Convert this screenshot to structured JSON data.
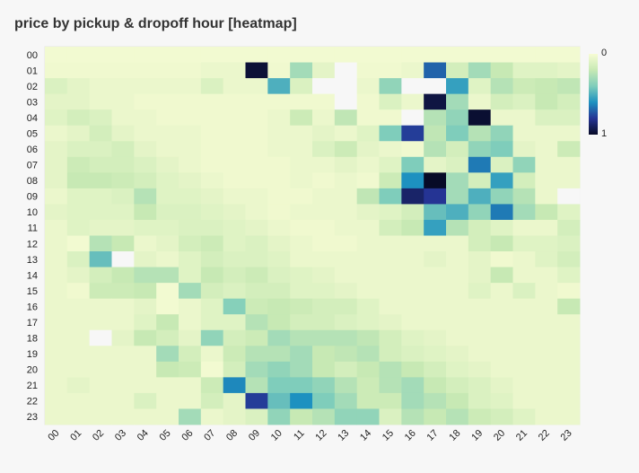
{
  "chart_data": {
    "type": "heatmap",
    "title": "price by pickup & dropoff hour [heatmap]",
    "x_categories": [
      "00",
      "01",
      "02",
      "03",
      "04",
      "05",
      "06",
      "07",
      "08",
      "09",
      "10",
      "11",
      "12",
      "13",
      "14",
      "15",
      "16",
      "17",
      "18",
      "19",
      "20",
      "21",
      "22",
      "23"
    ],
    "y_categories": [
      "00",
      "01",
      "02",
      "03",
      "04",
      "05",
      "06",
      "07",
      "08",
      "09",
      "10",
      "11",
      "12",
      "13",
      "14",
      "15",
      "16",
      "17",
      "18",
      "19",
      "20",
      "21",
      "22",
      "23"
    ],
    "color_range": [
      0,
      1
    ],
    "legend": {
      "min_label": "0",
      "max_label": "1",
      "placement": "right"
    },
    "values": [
      [
        0.02,
        0.02,
        0.02,
        0.02,
        0.02,
        0.02,
        0.02,
        0.02,
        0.02,
        0.02,
        0.02,
        0.02,
        0.02,
        0.02,
        0.02,
        0.02,
        0.02,
        0.02,
        0.02,
        0.02,
        0.02,
        0.02,
        0.02,
        0.02
      ],
      [
        0.03,
        0.03,
        0.03,
        0.03,
        0.03,
        0.03,
        0.03,
        0.05,
        0.05,
        0.97,
        0.03,
        0.3,
        0.08,
        null,
        0.03,
        0.03,
        0.05,
        0.7,
        0.15,
        0.3,
        0.2,
        0.1,
        0.1,
        0.08
      ],
      [
        0.12,
        0.08,
        0.05,
        0.05,
        0.05,
        0.05,
        0.05,
        0.12,
        0.05,
        0.05,
        0.5,
        0.12,
        null,
        null,
        0.05,
        0.35,
        null,
        null,
        0.55,
        0.1,
        0.25,
        0.18,
        0.2,
        0.22
      ],
      [
        0.08,
        0.08,
        0.05,
        0.05,
        0.03,
        0.03,
        0.03,
        0.03,
        0.03,
        0.03,
        0.03,
        0.03,
        0.03,
        null,
        0.03,
        0.12,
        0.05,
        0.95,
        0.3,
        0.05,
        0.15,
        0.12,
        0.2,
        0.15
      ],
      [
        0.1,
        0.15,
        0.12,
        0.05,
        0.05,
        0.03,
        0.03,
        0.03,
        0.03,
        0.03,
        0.05,
        0.18,
        0.05,
        0.22,
        0.03,
        0.03,
        null,
        0.25,
        0.35,
        0.98,
        0.05,
        0.05,
        0.12,
        0.12
      ],
      [
        0.05,
        0.08,
        0.15,
        0.08,
        0.05,
        0.05,
        0.05,
        0.03,
        0.03,
        0.03,
        0.05,
        0.05,
        0.08,
        0.05,
        0.1,
        0.4,
        0.78,
        0.22,
        0.4,
        0.25,
        0.35,
        0.05,
        0.05,
        0.05
      ],
      [
        0.08,
        0.12,
        0.12,
        0.15,
        0.08,
        0.05,
        0.05,
        0.03,
        0.03,
        0.03,
        0.05,
        0.05,
        0.12,
        0.18,
        0.08,
        0.05,
        0.03,
        0.25,
        0.15,
        0.35,
        0.4,
        0.08,
        0.05,
        0.18
      ],
      [
        0.08,
        0.18,
        0.15,
        0.15,
        0.12,
        0.08,
        0.05,
        0.03,
        0.03,
        0.03,
        0.03,
        0.05,
        0.05,
        0.08,
        0.05,
        0.1,
        0.4,
        0.08,
        0.12,
        0.65,
        0.12,
        0.35,
        0.05,
        0.05
      ],
      [
        0.08,
        0.2,
        0.2,
        0.18,
        0.15,
        0.1,
        0.08,
        0.05,
        0.03,
        0.03,
        0.03,
        0.05,
        0.03,
        0.05,
        0.03,
        0.18,
        0.6,
        1.0,
        0.3,
        0.15,
        0.55,
        0.15,
        0.05,
        0.05
      ],
      [
        0.05,
        0.1,
        0.1,
        0.12,
        0.25,
        0.1,
        0.1,
        0.08,
        0.05,
        0.05,
        0.03,
        0.03,
        0.05,
        0.05,
        0.22,
        0.4,
        0.88,
        0.8,
        0.3,
        0.5,
        0.35,
        0.25,
        0.05,
        null
      ],
      [
        0.08,
        0.1,
        0.1,
        0.1,
        0.2,
        0.12,
        0.12,
        0.1,
        0.08,
        0.05,
        0.03,
        0.05,
        0.05,
        0.05,
        0.08,
        0.1,
        0.15,
        0.45,
        0.5,
        0.35,
        0.65,
        0.3,
        0.2,
        0.1
      ],
      [
        0.05,
        0.1,
        0.08,
        0.08,
        0.1,
        0.1,
        0.12,
        0.12,
        0.1,
        0.08,
        0.05,
        0.03,
        0.03,
        0.05,
        0.05,
        0.15,
        0.2,
        0.55,
        0.25,
        0.15,
        0.1,
        0.05,
        0.05,
        0.15
      ],
      [
        0.05,
        0.02,
        0.25,
        0.2,
        0.05,
        0.08,
        0.15,
        0.18,
        0.1,
        0.12,
        0.08,
        0.05,
        0.03,
        0.03,
        0.05,
        0.05,
        0.05,
        0.05,
        0.05,
        0.15,
        0.2,
        0.1,
        0.1,
        0.12
      ],
      [
        0.05,
        0.12,
        0.45,
        null,
        0.08,
        0.05,
        0.1,
        0.15,
        0.12,
        0.12,
        0.1,
        0.05,
        0.05,
        0.05,
        0.05,
        0.05,
        0.05,
        0.08,
        0.05,
        0.08,
        0.03,
        0.05,
        0.1,
        0.15
      ],
      [
        0.05,
        0.08,
        0.15,
        0.2,
        0.25,
        0.25,
        0.1,
        0.2,
        0.15,
        0.18,
        0.12,
        0.1,
        0.08,
        0.05,
        0.05,
        0.05,
        0.05,
        0.05,
        0.05,
        0.08,
        0.2,
        0.05,
        0.05,
        0.1
      ],
      [
        0.05,
        0.03,
        0.18,
        0.18,
        0.2,
        0.02,
        0.3,
        0.15,
        0.12,
        0.15,
        0.15,
        0.1,
        0.1,
        0.08,
        0.05,
        0.05,
        0.05,
        0.05,
        0.05,
        0.1,
        0.05,
        0.12,
        0.05,
        0.03
      ],
      [
        0.05,
        0.05,
        0.05,
        0.05,
        0.08,
        0.02,
        0.05,
        0.1,
        0.38,
        0.18,
        0.2,
        0.18,
        0.15,
        0.15,
        0.1,
        0.05,
        0.05,
        0.05,
        0.05,
        0.05,
        0.05,
        0.05,
        0.05,
        0.2
      ],
      [
        0.05,
        0.05,
        0.05,
        0.05,
        0.1,
        0.2,
        0.05,
        0.1,
        0.1,
        0.25,
        0.2,
        0.15,
        0.15,
        0.12,
        0.1,
        0.08,
        0.05,
        0.05,
        0.05,
        0.05,
        0.05,
        0.05,
        0.05,
        0.05
      ],
      [
        0.05,
        0.05,
        null,
        0.08,
        0.2,
        0.15,
        0.08,
        0.35,
        0.15,
        0.18,
        0.3,
        0.25,
        0.25,
        0.25,
        0.22,
        0.15,
        0.1,
        0.08,
        0.05,
        0.05,
        0.05,
        0.05,
        0.05,
        0.05
      ],
      [
        0.05,
        0.05,
        0.05,
        0.05,
        0.05,
        0.3,
        0.15,
        0.05,
        0.18,
        0.25,
        0.25,
        0.3,
        0.2,
        0.22,
        0.25,
        0.15,
        0.12,
        0.1,
        0.08,
        0.05,
        0.05,
        0.05,
        0.05,
        0.05
      ],
      [
        0.05,
        0.05,
        0.05,
        0.05,
        0.05,
        0.2,
        0.18,
        0.02,
        0.15,
        0.3,
        0.35,
        0.3,
        0.2,
        0.15,
        0.2,
        0.25,
        0.2,
        0.15,
        0.1,
        0.08,
        0.05,
        0.05,
        0.05,
        0.05
      ],
      [
        0.05,
        0.08,
        0.05,
        0.05,
        0.05,
        0.05,
        0.05,
        0.18,
        0.62,
        0.25,
        0.4,
        0.4,
        0.35,
        0.25,
        0.18,
        0.25,
        0.3,
        0.2,
        0.15,
        0.12,
        0.08,
        0.05,
        0.05,
        0.05
      ],
      [
        0.05,
        0.05,
        0.05,
        0.05,
        0.12,
        0.05,
        0.05,
        0.15,
        0.08,
        0.78,
        0.45,
        0.6,
        0.4,
        0.3,
        0.18,
        0.18,
        0.3,
        0.25,
        0.2,
        0.12,
        0.1,
        0.05,
        0.05,
        0.05
      ],
      [
        0.05,
        0.05,
        0.05,
        0.05,
        0.05,
        0.05,
        0.3,
        0.05,
        0.08,
        0.12,
        0.35,
        0.2,
        0.25,
        0.35,
        0.35,
        0.12,
        0.25,
        0.2,
        0.25,
        0.18,
        0.15,
        0.1,
        0.05,
        0.05
      ]
    ]
  }
}
